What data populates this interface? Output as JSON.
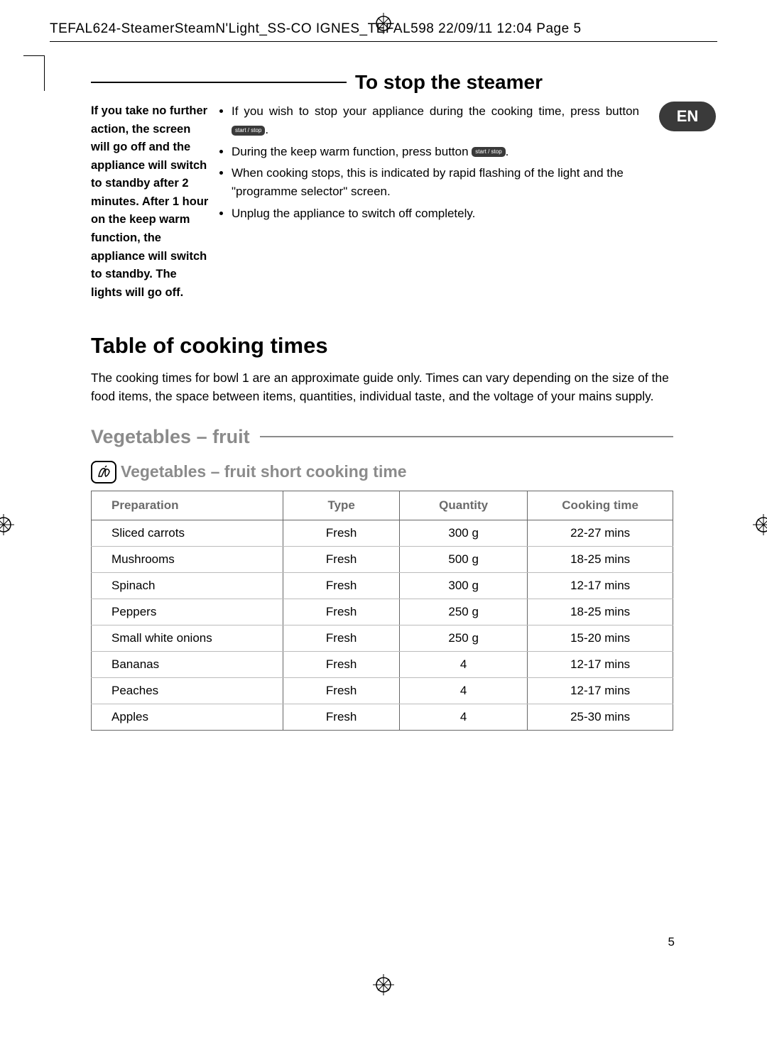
{
  "header": {
    "jobline": "TEFAL624-SteamerSteamN'Light_SS-CO       IGNES_TEFAL598  22/09/11  12:04  Page 5"
  },
  "lang_tab": "EN",
  "section_stop": {
    "title": "To stop the steamer",
    "side_note": "If you take no further action, the screen will go off and the appliance will switch to standby after 2 minutes. After 1 hour on the keep warm function, the appliance will switch to standby. The lights will go off.",
    "bullets": {
      "b1a": "If you wish to stop your appliance during the cooking time, press button ",
      "btn1": "start / stop",
      "b1b": ".",
      "b2a": "During the keep warm function, press button ",
      "btn2": "start / stop",
      "b2b": ".",
      "b3": "When cooking stops, this is indicated by rapid flashing of the light and the \"programme selector\" screen.",
      "b4": "Unplug the appliance to switch off completely."
    }
  },
  "table_section": {
    "title": "Table of cooking times",
    "intro": "The cooking times for bowl 1 are an approximate guide only. Times can vary depending on the size of the food items, the space between items, quantities, individual taste, and the voltage of your mains supply."
  },
  "veg_section": {
    "title": "Vegetables – fruit",
    "subhead": "Vegetables – fruit short cooking time",
    "columns": [
      "Preparation",
      "Type",
      "Quantity",
      "Cooking time"
    ],
    "rows": [
      [
        "Sliced carrots",
        "Fresh",
        "300 g",
        "22-27 mins"
      ],
      [
        "Mushrooms",
        "Fresh",
        "500 g",
        "18-25 mins"
      ],
      [
        "Spinach",
        "Fresh",
        "300 g",
        "12-17 mins"
      ],
      [
        "Peppers",
        "Fresh",
        "250 g",
        "18-25 mins"
      ],
      [
        "Small white onions",
        "Fresh",
        "250 g",
        "15-20 mins"
      ],
      [
        "Bananas",
        "Fresh",
        "4",
        "12-17 mins"
      ],
      [
        "Peaches",
        "Fresh",
        "4",
        "12-17 mins"
      ],
      [
        "Apples",
        "Fresh",
        "4",
        "25-30 mins"
      ]
    ]
  },
  "page_number": "5"
}
